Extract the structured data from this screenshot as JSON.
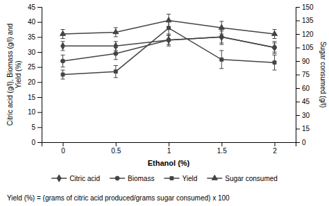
{
  "chart_data": {
    "type": "line",
    "x": [
      0,
      0.5,
      1,
      1.5,
      2
    ],
    "xlim": [
      -0.2,
      2.2
    ],
    "xticks": [
      0,
      0.5,
      1,
      1.5,
      2
    ],
    "ylim": [
      0,
      45
    ],
    "yticks": [
      0,
      5,
      10,
      15,
      20,
      25,
      30,
      35,
      40,
      45
    ],
    "y2lim": [
      0,
      150
    ],
    "y2ticks": [
      0,
      15,
      30,
      45,
      60,
      75,
      90,
      105,
      120,
      135,
      150
    ],
    "xlabel": "Ethanol (%)",
    "ylabel": "Citric acid (g/l), Biomass (g/l) and\nYield (%)",
    "y2label": "Sugar consumed (g/l)",
    "caption": "Yield (%) = (grams of citric acid produced/grams sugar consumed) x 100",
    "grid": false,
    "legend": "bottom",
    "series": [
      {
        "name": "Citric acid",
        "color": "#444444",
        "marker": "diamond",
        "values": [
          32.0,
          32.0,
          34.0,
          35.0,
          31.5
        ],
        "errors": [
          1.5,
          1.5,
          2.0,
          2.0,
          1.5
        ]
      },
      {
        "name": "Biomass",
        "color": "#444444",
        "marker": "circle",
        "values": [
          27.0,
          29.5,
          34.0,
          35.0,
          31.5
        ],
        "errors": [
          2.0,
          2.0,
          1.5,
          2.5,
          2.0
        ]
      },
      {
        "name": "Yield",
        "color": "#444444",
        "marker": "square",
        "values": [
          22.5,
          23.5,
          38.0,
          27.5,
          26.5
        ],
        "errors": [
          1.5,
          2.0,
          2.5,
          3.0,
          2.5
        ]
      },
      {
        "name": "Sugar consumed",
        "color": "#444444",
        "marker": "triangle",
        "axis": "y2",
        "values": [
          120.0,
          122.0,
          135.0,
          127.0,
          120.0
        ],
        "errors": [
          5.0,
          5.0,
          7.0,
          7.0,
          5.0
        ]
      }
    ]
  }
}
